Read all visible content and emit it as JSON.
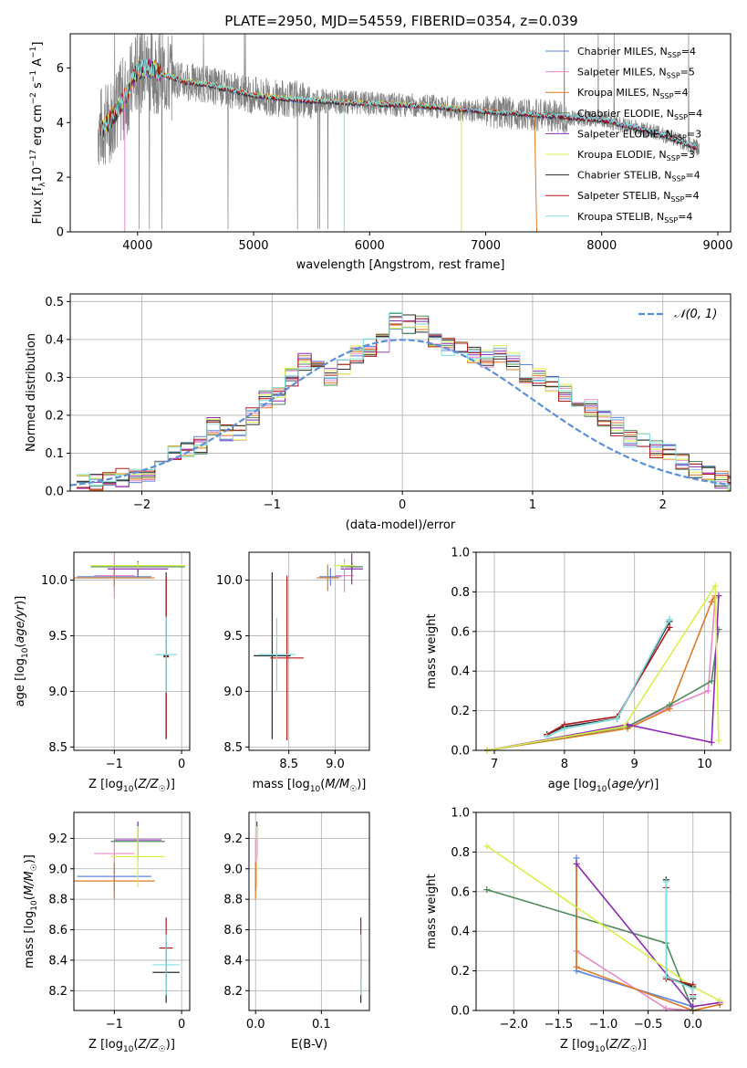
{
  "figure": {
    "title": "PLATE=2950, MJD=54559, FIBERID=0354, z=0.039"
  },
  "colors": {
    "data": "#808080",
    "Chabrier MILES": "#5b84e0",
    "Salpeter MILES": "#e88ac9",
    "Kroupa MILES": "#e07a22",
    "Chabrier ELODIE": "#4f8a5a",
    "Salpeter ELODIE": "#8e2bb5",
    "Kroupa ELODIE": "#d9f04a",
    "Chabrier STELIB": "#2b2b2b",
    "Salpeter STELIB": "#b01818",
    "Kroupa STELIB": "#80dede",
    "normal": "#5b8fd9"
  },
  "chart_data": [
    {
      "id": "spectrum",
      "type": "line",
      "title": "PLATE=2950, MJD=54559, FIBERID=0354, z=0.039",
      "xlabel": "wavelength [Angstrom, rest frame]",
      "ylabel": "Flux [f_λ 10^-17 erg cm^-2 s^-1 A^-1]",
      "xlim": [
        3420,
        9110
      ],
      "ylim": [
        0,
        7.25
      ],
      "xticks": [
        "4000",
        "5000",
        "6000",
        "7000",
        "8000",
        "9000"
      ],
      "yticks": [
        "0",
        "2",
        "4",
        "6"
      ],
      "legend_position": "top-right",
      "legend": [
        {
          "model": "Chabrier MILES",
          "nssp": "4"
        },
        {
          "model": "Salpeter MILES",
          "nssp": "5"
        },
        {
          "model": "Kroupa MILES",
          "nssp": "4"
        },
        {
          "model": "Chabrier ELODIE",
          "nssp": "4"
        },
        {
          "model": "Salpeter ELODIE",
          "nssp": "3"
        },
        {
          "model": "Kroupa ELODIE",
          "nssp": "3"
        },
        {
          "model": "Chabrier STELIB",
          "nssp": "4"
        },
        {
          "model": "Salpeter STELIB",
          "nssp": "4"
        },
        {
          "model": "Kroupa STELIB",
          "nssp": "4"
        }
      ],
      "model_continuum": {
        "x": [
          3700,
          3800,
          3900,
          4000,
          4100,
          4200,
          4400,
          4600,
          4800,
          5000,
          5200,
          5500,
          6000,
          6500,
          7000,
          7400,
          8000,
          8500,
          8800
        ],
        "y": [
          3.8,
          4.3,
          5.0,
          5.9,
          6.0,
          5.8,
          5.5,
          5.4,
          5.2,
          5.0,
          4.9,
          4.8,
          4.7,
          4.6,
          4.4,
          4.3,
          4.1,
          3.6,
          3.1
        ]
      }
    },
    {
      "id": "residuals",
      "type": "step",
      "xlabel": "(data-model)/error",
      "ylabel": "Normed distribution",
      "xlim": [
        -2.55,
        2.52
      ],
      "ylim": [
        0,
        0.52
      ],
      "xticks": [
        "−2",
        "−1",
        "0",
        "1",
        "2"
      ],
      "yticks": [
        "0.0",
        "0.1",
        "0.2",
        "0.3",
        "0.4",
        "0.5"
      ],
      "legend_position": "top-right",
      "legend": "𝒩(0, 1)",
      "bin_width": 0.1,
      "bin_start": -2.5,
      "histogram_reference": [
        0.025,
        0.025,
        0.03,
        0.035,
        0.04,
        0.05,
        0.065,
        0.1,
        0.11,
        0.12,
        0.17,
        0.15,
        0.15,
        0.2,
        0.24,
        0.25,
        0.3,
        0.34,
        0.33,
        0.3,
        0.33,
        0.36,
        0.38,
        0.39,
        0.45,
        0.44,
        0.44,
        0.39,
        0.38,
        0.37,
        0.36,
        0.35,
        0.36,
        0.34,
        0.31,
        0.3,
        0.28,
        0.26,
        0.24,
        0.22,
        0.19,
        0.17,
        0.14,
        0.14,
        0.11,
        0.1,
        0.08,
        0.06,
        0.05,
        0.03,
        0.025
      ]
    },
    {
      "id": "z-age",
      "type": "scatter",
      "xlabel": "Z [log10(Z/Z☉)]",
      "ylabel": "age  [log10(age/yr)]",
      "xlim": [
        -1.6,
        0.12
      ],
      "ylim": [
        8.47,
        10.25
      ],
      "xticks": [
        "−1",
        "0"
      ],
      "yticks": [
        "8.5",
        "9.0",
        "9.5",
        "10.0"
      ],
      "points": [
        {
          "model": "Chabrier MILES",
          "x": -1.0,
          "y": 10.03,
          "xerr": 0.55,
          "yerr": 0.07
        },
        {
          "model": "Salpeter MILES",
          "x": -1.0,
          "y": 10.04,
          "xerr": 0.3,
          "yerr": 0.2
        },
        {
          "model": "Kroupa MILES",
          "x": -1.0,
          "y": 10.02,
          "xerr": 0.6,
          "yerr": 0.08
        },
        {
          "model": "Chabrier ELODIE",
          "x": -0.65,
          "y": 10.12,
          "xerr": 0.7,
          "yerr": 0.05
        },
        {
          "model": "Salpeter ELODIE",
          "x": -0.65,
          "y": 10.1,
          "xerr": 0.45,
          "yerr": 0.07
        },
        {
          "model": "Kroupa ELODIE",
          "x": -0.65,
          "y": 10.13,
          "xerr": 0.7,
          "yerr": 0.03
        },
        {
          "model": "Chabrier STELIB",
          "x": -0.23,
          "y": 9.32,
          "xerr": 0.04,
          "yerr": 0.75
        },
        {
          "model": "Salpeter STELIB",
          "x": -0.23,
          "y": 9.31,
          "xerr": 0.04,
          "yerr": 0.72
        },
        {
          "model": "Kroupa STELIB",
          "x": -0.23,
          "y": 9.33,
          "xerr": 0.16,
          "yerr": 0.34
        }
      ]
    },
    {
      "id": "mass-age",
      "type": "scatter",
      "xlabel": "mass [log10(M/M☉)]",
      "ylabel": "",
      "xlim": [
        8.07,
        9.37
      ],
      "ylim": [
        8.47,
        10.25
      ],
      "xticks": [
        "8.5",
        "9.0"
      ],
      "yticks": [
        "8.5",
        "9.0",
        "9.5",
        "10.0"
      ],
      "points": [
        {
          "model": "Chabrier MILES",
          "x": 8.95,
          "y": 10.03,
          "xerr": 0.12,
          "yerr": 0.08
        },
        {
          "model": "Salpeter MILES",
          "x": 9.1,
          "y": 10.04,
          "xerr": 0.1,
          "yerr": 0.15
        },
        {
          "model": "Kroupa MILES",
          "x": 8.92,
          "y": 10.02,
          "xerr": 0.12,
          "yerr": 0.12
        },
        {
          "model": "Chabrier ELODIE",
          "x": 9.18,
          "y": 10.12,
          "xerr": 0.12,
          "yerr": 0.04
        },
        {
          "model": "Salpeter ELODIE",
          "x": 9.18,
          "y": 10.1,
          "xerr": 0.12,
          "yerr": 0.14
        },
        {
          "model": "Kroupa ELODIE",
          "x": 9.1,
          "y": 10.13,
          "xerr": 0.12,
          "yerr": 0.03
        },
        {
          "model": "Chabrier STELIB",
          "x": 8.32,
          "y": 9.32,
          "xerr": 0.2,
          "yerr": 0.75
        },
        {
          "model": "Salpeter STELIB",
          "x": 8.48,
          "y": 9.3,
          "xerr": 0.18,
          "yerr": 0.74
        },
        {
          "model": "Kroupa STELIB",
          "x": 8.37,
          "y": 9.33,
          "xerr": 0.2,
          "yerr": 0.33
        }
      ]
    },
    {
      "id": "age-weight",
      "type": "line",
      "xlabel": "age  [log10(age/yr)]",
      "ylabel": "mass weight",
      "xlim": [
        6.74,
        10.37
      ],
      "ylim": [
        0,
        1.0
      ],
      "xticks": [
        "7",
        "8",
        "9",
        "10"
      ],
      "yticks": [
        "0.0",
        "0.2",
        "0.4",
        "0.6",
        "0.8",
        "1.0"
      ],
      "series": [
        {
          "model": "Chabrier MILES",
          "x": [
            7.75,
            8.0,
            8.75,
            9.5
          ],
          "y": [
            0.07,
            0.11,
            0.16,
            0.66
          ]
        },
        {
          "model": "Salpeter MILES",
          "x": [
            6.9,
            8.9,
            9.5,
            10.05,
            10.15
          ],
          "y": [
            0.0,
            0.12,
            0.22,
            0.3,
            0.77
          ]
        },
        {
          "model": "Kroupa MILES",
          "x": [
            6.9,
            8.9,
            9.5,
            10.1,
            10.15
          ],
          "y": [
            0.0,
            0.11,
            0.21,
            0.75,
            0.78
          ]
        },
        {
          "model": "Chabrier ELODIE",
          "x": [
            6.9,
            8.9,
            9.5,
            10.1,
            10.2
          ],
          "y": [
            0.0,
            0.12,
            0.23,
            0.35,
            0.61
          ]
        },
        {
          "model": "Salpeter ELODIE",
          "x": [
            6.9,
            8.9,
            10.1,
            10.2
          ],
          "y": [
            0.0,
            0.13,
            0.04,
            0.78
          ]
        },
        {
          "model": "Kroupa ELODIE",
          "x": [
            6.9,
            8.85,
            10.15,
            10.2
          ],
          "y": [
            0.0,
            0.12,
            0.83,
            0.05
          ]
        },
        {
          "model": "Chabrier STELIB",
          "x": [
            7.75,
            8.0,
            8.75,
            9.5
          ],
          "y": [
            0.08,
            0.12,
            0.16,
            0.65
          ]
        },
        {
          "model": "Salpeter STELIB",
          "x": [
            7.75,
            8.0,
            8.75,
            9.5
          ],
          "y": [
            0.08,
            0.13,
            0.17,
            0.62
          ]
        },
        {
          "model": "Kroupa STELIB",
          "x": [
            7.75,
            8.0,
            8.75,
            9.5
          ],
          "y": [
            0.07,
            0.11,
            0.16,
            0.66
          ]
        }
      ]
    },
    {
      "id": "z-mass",
      "type": "scatter",
      "xlabel": "Z [log10(Z/Z☉)]",
      "ylabel": "mass [log10(M/M☉)]",
      "xlim": [
        -1.6,
        0.12
      ],
      "ylim": [
        8.07,
        9.37
      ],
      "xticks": [
        "−1",
        "0"
      ],
      "yticks": [
        "8.2",
        "8.4",
        "8.6",
        "8.8",
        "9.0",
        "9.2"
      ],
      "points": [
        {
          "model": "Chabrier MILES",
          "x": -1.0,
          "y": 8.95,
          "xerr": 0.55,
          "yerr": 0.1
        },
        {
          "model": "Salpeter MILES",
          "x": -1.0,
          "y": 9.1,
          "xerr": 0.3,
          "yerr": 0.08
        },
        {
          "model": "Kroupa MILES",
          "x": -1.0,
          "y": 8.92,
          "xerr": 0.6,
          "yerr": 0.12
        },
        {
          "model": "Chabrier ELODIE",
          "x": -0.65,
          "y": 9.18,
          "xerr": 0.4,
          "yerr": 0.12
        },
        {
          "model": "Salpeter ELODIE",
          "x": -0.65,
          "y": 9.19,
          "xerr": 0.35,
          "yerr": 0.12
        },
        {
          "model": "Kroupa ELODIE",
          "x": -0.65,
          "y": 9.08,
          "xerr": 0.4,
          "yerr": 0.2
        },
        {
          "model": "Chabrier STELIB",
          "x": -0.23,
          "y": 8.32,
          "xerr": 0.2,
          "yerr": 0.2
        },
        {
          "model": "Salpeter STELIB",
          "x": -0.23,
          "y": 8.48,
          "xerr": 0.1,
          "yerr": 0.2
        },
        {
          "model": "Kroupa STELIB",
          "x": -0.23,
          "y": 8.37,
          "xerr": 0.2,
          "yerr": 0.2
        }
      ]
    },
    {
      "id": "ebv-mass",
      "type": "scatter",
      "xlabel": "E(B-V)",
      "ylabel": "",
      "xlim": [
        -0.01,
        0.173
      ],
      "ylim": [
        8.07,
        9.37
      ],
      "xticks": [
        "0.0",
        "0.1"
      ],
      "yticks": [
        "8.2",
        "8.4",
        "8.6",
        "8.8",
        "9.0",
        "9.2"
      ],
      "points": [
        {
          "model": "Chabrier MILES",
          "x": 0.0,
          "y": 8.95,
          "xerr": 0.0,
          "yerr": 0.1
        },
        {
          "model": "Salpeter MILES",
          "x": 0.0,
          "y": 9.1,
          "xerr": 0.0,
          "yerr": 0.1
        },
        {
          "model": "Kroupa MILES",
          "x": 0.0,
          "y": 8.92,
          "xerr": 0.0,
          "yerr": 0.12
        },
        {
          "model": "Chabrier ELODIE",
          "x": 0.002,
          "y": 9.18,
          "xerr": 0.0,
          "yerr": 0.12
        },
        {
          "model": "Salpeter ELODIE",
          "x": 0.002,
          "y": 9.19,
          "xerr": 0.0,
          "yerr": 0.12
        },
        {
          "model": "Kroupa ELODIE",
          "x": 0.002,
          "y": 9.08,
          "xerr": 0.0,
          "yerr": 0.2
        },
        {
          "model": "Chabrier STELIB",
          "x": 0.16,
          "y": 8.32,
          "xerr": 0.0,
          "yerr": 0.2
        },
        {
          "model": "Salpeter STELIB",
          "x": 0.16,
          "y": 8.48,
          "xerr": 0.0,
          "yerr": 0.2
        },
        {
          "model": "Kroupa STELIB",
          "x": 0.16,
          "y": 8.37,
          "xerr": 0.0,
          "yerr": 0.2
        }
      ]
    },
    {
      "id": "z-weight",
      "type": "line",
      "xlabel": "Z [log10(Z/Z☉)]",
      "ylabel": "mass weight",
      "xlim": [
        -2.42,
        0.42
      ],
      "ylim": [
        0,
        1.0
      ],
      "xticks": [
        "−2.0",
        "−1.5",
        "−1.0",
        "−0.5",
        "0.0"
      ],
      "yticks": [
        "0.0",
        "0.2",
        "0.4",
        "0.6",
        "0.8",
        "1.0"
      ],
      "series": [
        {
          "model": "Chabrier MILES",
          "x": [
            -1.3,
            -1.3,
            0.0,
            0.0
          ],
          "y": [
            0.77,
            0.2,
            0.02,
            0.0
          ]
        },
        {
          "model": "Salpeter MILES",
          "x": [
            -1.3,
            -1.3,
            -0.3,
            0.0
          ],
          "y": [
            0.74,
            0.3,
            0.01,
            0.0
          ]
        },
        {
          "model": "Kroupa MILES",
          "x": [
            -1.3,
            -1.3,
            0.0,
            0.3
          ],
          "y": [
            0.74,
            0.22,
            0.0,
            0.03
          ]
        },
        {
          "model": "Chabrier ELODIE",
          "x": [
            -2.3,
            -0.3,
            0.0
          ],
          "y": [
            0.61,
            0.34,
            0.0
          ]
        },
        {
          "model": "Salpeter ELODIE",
          "x": [
            -1.3,
            0.0,
            0.3
          ],
          "y": [
            0.74,
            0.02,
            0.04
          ]
        },
        {
          "model": "Kroupa ELODIE",
          "x": [
            -2.3,
            0.0,
            0.3
          ],
          "y": [
            0.83,
            0.12,
            0.05
          ]
        },
        {
          "model": "Chabrier STELIB",
          "x": [
            -0.3,
            -0.3,
            0.0,
            0.0
          ],
          "y": [
            0.66,
            0.17,
            0.12,
            0.06
          ]
        },
        {
          "model": "Salpeter STELIB",
          "x": [
            -0.3,
            -0.3,
            0.0,
            0.0
          ],
          "y": [
            0.62,
            0.16,
            0.13,
            0.08
          ]
        },
        {
          "model": "Kroupa STELIB",
          "x": [
            -0.3,
            -0.3,
            0.0,
            0.0
          ],
          "y": [
            0.65,
            0.17,
            0.11,
            0.07
          ]
        }
      ]
    }
  ]
}
